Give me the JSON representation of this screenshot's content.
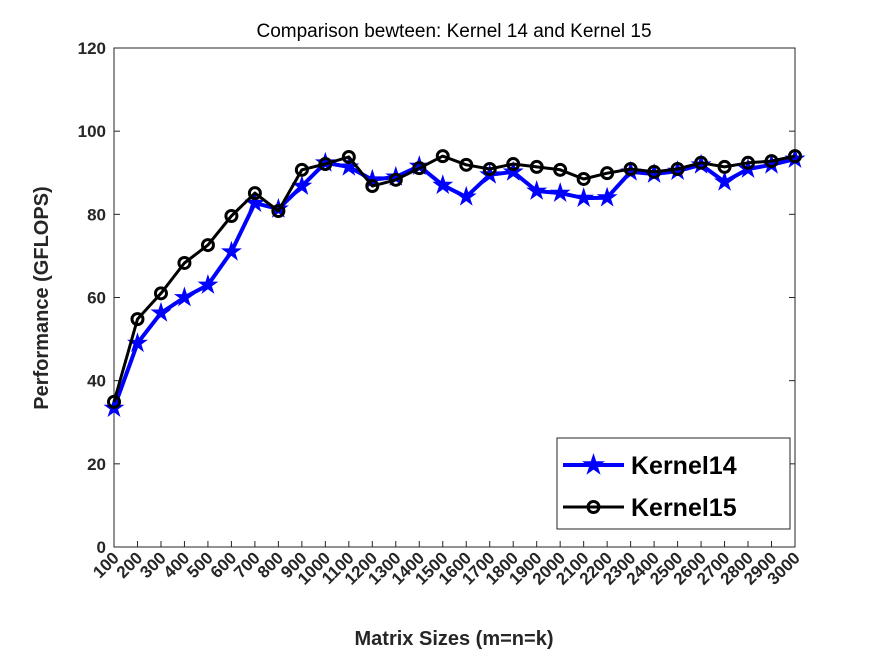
{
  "chart_data": {
    "type": "line",
    "title": "Comparison bewteen: Kernel 14 and Kernel 15",
    "xlabel": "Matrix Sizes (m=n=k)",
    "ylabel": "Performance (GFLOPS)",
    "ylim": [
      0,
      120
    ],
    "yticks": [
      0,
      20,
      40,
      60,
      80,
      100,
      120
    ],
    "grid": false,
    "legend_position": "bottom-right",
    "categories": [
      "100",
      "200",
      "300",
      "400",
      "500",
      "600",
      "700",
      "800",
      "900",
      "1000",
      "1100",
      "1200",
      "1300",
      "1400",
      "1500",
      "1600",
      "1700",
      "1800",
      "1900",
      "2000",
      "2100",
      "2200",
      "2300",
      "2400",
      "2500",
      "2600",
      "2700",
      "2800",
      "2900",
      "3000"
    ],
    "series": [
      {
        "name": "Kernel14",
        "color": "#0000ff",
        "marker": "star",
        "values": [
          33.4,
          49.0,
          56.3,
          60.0,
          63.0,
          71.0,
          82.7,
          81.3,
          86.8,
          92.4,
          91.4,
          88.3,
          89.0,
          91.6,
          87.0,
          84.2,
          89.5,
          90.2,
          85.6,
          85.1,
          83.9,
          84.0,
          90.2,
          89.7,
          90.4,
          91.9,
          87.8,
          90.9,
          91.9,
          93.3
        ]
      },
      {
        "name": "Kernel15",
        "color": "#000000",
        "marker": "circle",
        "values": [
          34.9,
          54.8,
          61.0,
          68.3,
          72.6,
          79.6,
          85.1,
          80.8,
          90.7,
          92.1,
          93.8,
          86.8,
          88.3,
          91.1,
          94.0,
          91.9,
          90.9,
          92.1,
          91.4,
          90.7,
          88.5,
          89.9,
          90.9,
          90.2,
          90.9,
          92.4,
          91.4,
          92.4,
          92.8,
          94.0
        ]
      }
    ]
  }
}
